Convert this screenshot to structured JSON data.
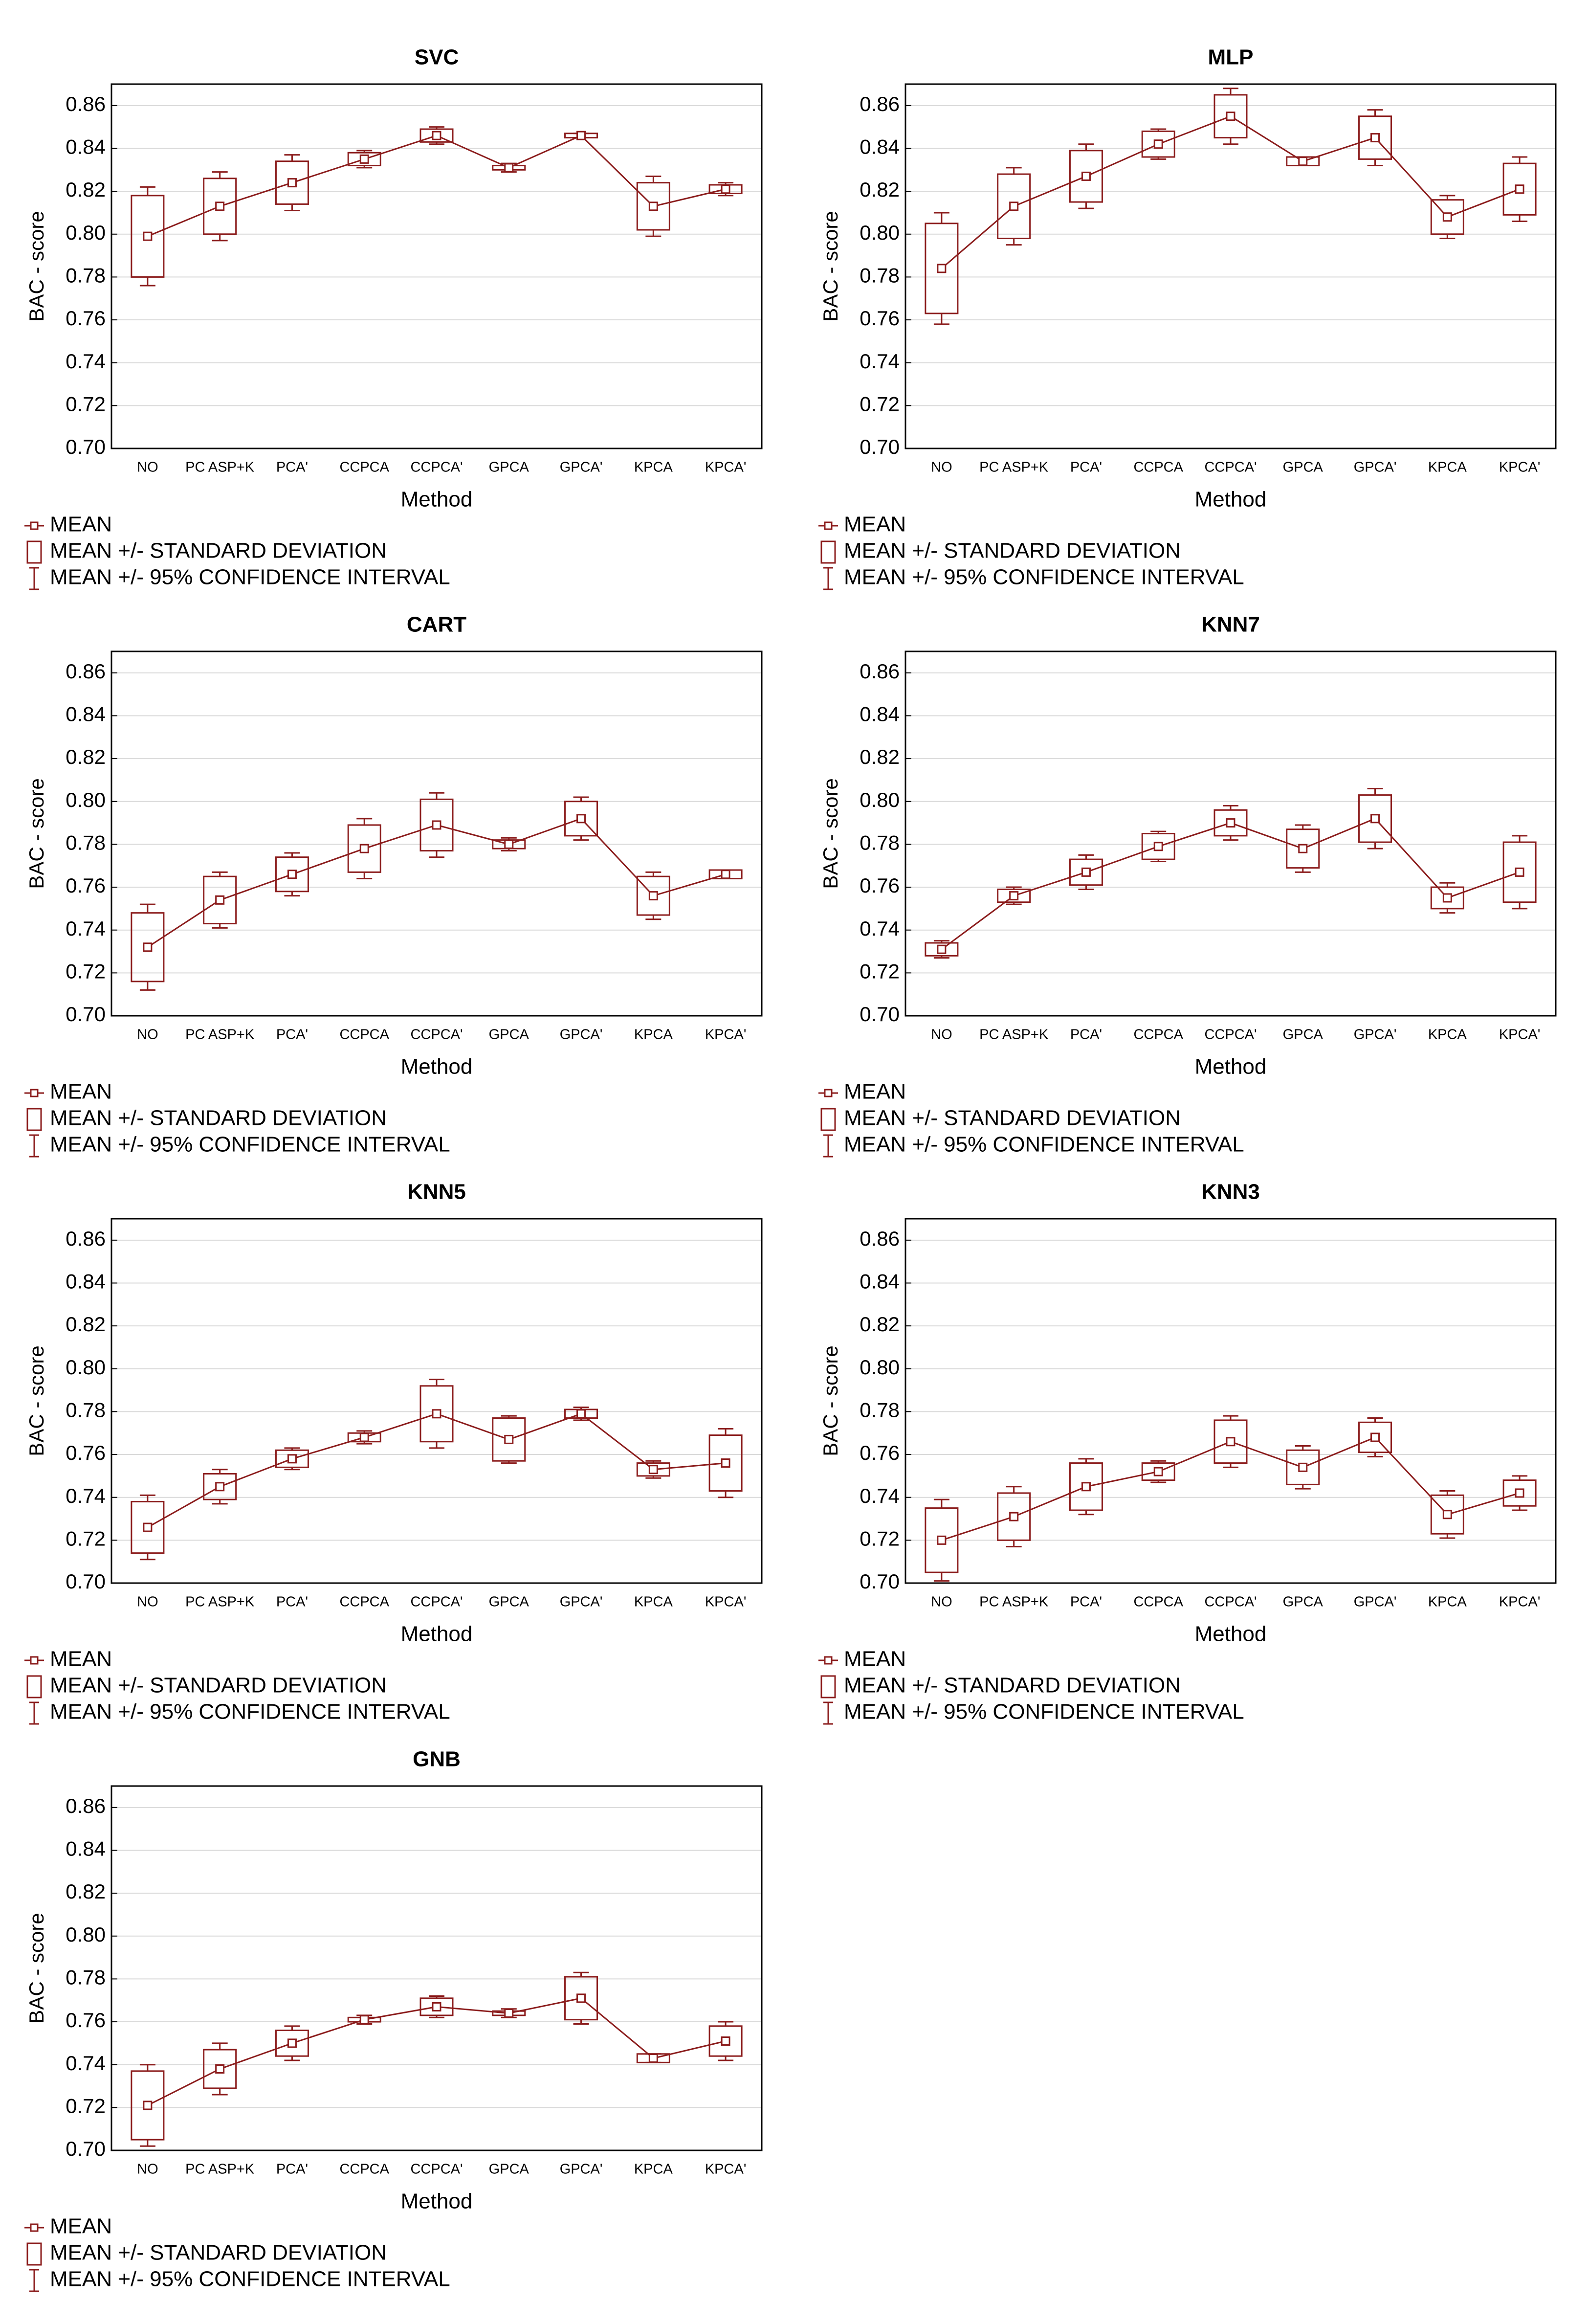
{
  "chart_data": [
    {
      "type": "box",
      "title": "SVC",
      "xlabel": "Method",
      "ylabel": "BAC - score",
      "color": "#8b1c1c",
      "grid": true,
      "legend": [
        "MEAN",
        "MEAN +/- STANDARD DEVIATION",
        "MEAN +/- 95% CONFIDENCE INTERVAL"
      ],
      "categories": [
        "NO",
        "PC ASP+K",
        "PCA'",
        "CCPCA",
        "CCPCA'",
        "GPCA",
        "GPCA'",
        "KPCA",
        "KPCA'"
      ],
      "mean": [
        0.799,
        0.813,
        0.824,
        0.835,
        0.846,
        0.831,
        0.846,
        0.813,
        0.821
      ],
      "sd": [
        0.019,
        0.013,
        0.01,
        0.003,
        0.003,
        0.001,
        0.001,
        0.011,
        0.002
      ],
      "ci": [
        0.023,
        0.016,
        0.013,
        0.004,
        0.004,
        0.002,
        0.001,
        0.014,
        0.003
      ],
      "ylim": [
        0.7,
        0.87
      ],
      "yticks": [
        {
          "value": 0.7,
          "label": "0.70"
        },
        {
          "value": 0.72,
          "label": "0.72"
        },
        {
          "value": 0.74,
          "label": "0.74"
        },
        {
          "value": 0.76,
          "label": "0.76"
        },
        {
          "value": 0.78,
          "label": "0.78"
        },
        {
          "value": 0.8,
          "label": "0.80"
        },
        {
          "value": 0.82,
          "label": "0.82"
        },
        {
          "value": 0.84,
          "label": "0.84"
        },
        {
          "value": 0.86,
          "label": "0.86"
        }
      ]
    },
    {
      "type": "box",
      "title": "MLP",
      "xlabel": "Method",
      "ylabel": "BAC - score",
      "color": "#8b1c1c",
      "grid": true,
      "legend": [
        "MEAN",
        "MEAN +/- STANDARD DEVIATION",
        "MEAN +/- 95% CONFIDENCE INTERVAL"
      ],
      "categories": [
        "NO",
        "PC ASP+K",
        "PCA'",
        "CCPCA",
        "CCPCA'",
        "GPCA",
        "GPCA'",
        "KPCA",
        "KPCA'"
      ],
      "mean": [
        0.784,
        0.813,
        0.827,
        0.842,
        0.855,
        0.834,
        0.845,
        0.808,
        0.821
      ],
      "sd": [
        0.021,
        0.015,
        0.012,
        0.006,
        0.01,
        0.002,
        0.01,
        0.008,
        0.012
      ],
      "ci": [
        0.026,
        0.018,
        0.015,
        0.007,
        0.013,
        0.002,
        0.013,
        0.01,
        0.015
      ],
      "ylim": [
        0.7,
        0.87
      ],
      "yticks": [
        {
          "value": 0.7,
          "label": "0.70"
        },
        {
          "value": 0.72,
          "label": "0.72"
        },
        {
          "value": 0.74,
          "label": "0.74"
        },
        {
          "value": 0.76,
          "label": "0.76"
        },
        {
          "value": 0.78,
          "label": "0.78"
        },
        {
          "value": 0.8,
          "label": "0.80"
        },
        {
          "value": 0.82,
          "label": "0.82"
        },
        {
          "value": 0.84,
          "label": "0.84"
        },
        {
          "value": 0.86,
          "label": "0.86"
        }
      ]
    },
    {
      "type": "box",
      "title": "CART",
      "xlabel": "Method",
      "ylabel": "BAC - score",
      "color": "#8b1c1c",
      "grid": true,
      "legend": [
        "MEAN",
        "MEAN +/- STANDARD DEVIATION",
        "MEAN +/- 95% CONFIDENCE INTERVAL"
      ],
      "categories": [
        "NO",
        "PC ASP+K",
        "PCA'",
        "CCPCA",
        "CCPCA'",
        "GPCA",
        "GPCA'",
        "KPCA",
        "KPCA'"
      ],
      "mean": [
        0.732,
        0.754,
        0.766,
        0.778,
        0.789,
        0.78,
        0.792,
        0.756,
        0.766
      ],
      "sd": [
        0.016,
        0.011,
        0.008,
        0.011,
        0.012,
        0.002,
        0.008,
        0.009,
        0.002
      ],
      "ci": [
        0.02,
        0.013,
        0.01,
        0.014,
        0.015,
        0.003,
        0.01,
        0.011,
        0.002
      ],
      "ylim": [
        0.7,
        0.87
      ],
      "yticks": [
        {
          "value": 0.7,
          "label": "0.70"
        },
        {
          "value": 0.72,
          "label": "0.72"
        },
        {
          "value": 0.74,
          "label": "0.74"
        },
        {
          "value": 0.76,
          "label": "0.76"
        },
        {
          "value": 0.78,
          "label": "0.78"
        },
        {
          "value": 0.8,
          "label": "0.80"
        },
        {
          "value": 0.82,
          "label": "0.82"
        },
        {
          "value": 0.84,
          "label": "0.84"
        },
        {
          "value": 0.86,
          "label": "0.86"
        }
      ]
    },
    {
      "type": "box",
      "title": "KNN7",
      "xlabel": "Method",
      "ylabel": "BAC - score",
      "color": "#8b1c1c",
      "grid": true,
      "legend": [
        "MEAN",
        "MEAN +/- STANDARD DEVIATION",
        "MEAN +/- 95% CONFIDENCE INTERVAL"
      ],
      "categories": [
        "NO",
        "PC ASP+K",
        "PCA'",
        "CCPCA",
        "CCPCA'",
        "GPCA",
        "GPCA'",
        "KPCA",
        "KPCA'"
      ],
      "mean": [
        0.731,
        0.756,
        0.767,
        0.779,
        0.79,
        0.778,
        0.792,
        0.755,
        0.767
      ],
      "sd": [
        0.003,
        0.003,
        0.006,
        0.006,
        0.006,
        0.009,
        0.011,
        0.005,
        0.014
      ],
      "ci": [
        0.004,
        0.004,
        0.008,
        0.007,
        0.008,
        0.011,
        0.014,
        0.007,
        0.017
      ],
      "ylim": [
        0.7,
        0.87
      ],
      "yticks": [
        {
          "value": 0.7,
          "label": "0.70"
        },
        {
          "value": 0.72,
          "label": "0.72"
        },
        {
          "value": 0.74,
          "label": "0.74"
        },
        {
          "value": 0.76,
          "label": "0.76"
        },
        {
          "value": 0.78,
          "label": "0.78"
        },
        {
          "value": 0.8,
          "label": "0.80"
        },
        {
          "value": 0.82,
          "label": "0.82"
        },
        {
          "value": 0.84,
          "label": "0.84"
        },
        {
          "value": 0.86,
          "label": "0.86"
        }
      ]
    },
    {
      "type": "box",
      "title": "KNN5",
      "xlabel": "Method",
      "ylabel": "BAC - score",
      "color": "#8b1c1c",
      "grid": true,
      "legend": [
        "MEAN",
        "MEAN +/- STANDARD DEVIATION",
        "MEAN +/- 95% CONFIDENCE INTERVAL"
      ],
      "categories": [
        "NO",
        "PC ASP+K",
        "PCA'",
        "CCPCA",
        "CCPCA'",
        "GPCA",
        "GPCA'",
        "KPCA",
        "KPCA'"
      ],
      "mean": [
        0.726,
        0.745,
        0.758,
        0.768,
        0.779,
        0.767,
        0.779,
        0.753,
        0.756
      ],
      "sd": [
        0.012,
        0.006,
        0.004,
        0.002,
        0.013,
        0.01,
        0.002,
        0.003,
        0.013
      ],
      "ci": [
        0.015,
        0.008,
        0.005,
        0.003,
        0.016,
        0.011,
        0.003,
        0.004,
        0.016
      ],
      "ylim": [
        0.7,
        0.87
      ],
      "yticks": [
        {
          "value": 0.7,
          "label": "0.70"
        },
        {
          "value": 0.72,
          "label": "0.72"
        },
        {
          "value": 0.74,
          "label": "0.74"
        },
        {
          "value": 0.76,
          "label": "0.76"
        },
        {
          "value": 0.78,
          "label": "0.78"
        },
        {
          "value": 0.8,
          "label": "0.80"
        },
        {
          "value": 0.82,
          "label": "0.82"
        },
        {
          "value": 0.84,
          "label": "0.84"
        },
        {
          "value": 0.86,
          "label": "0.86"
        }
      ]
    },
    {
      "type": "box",
      "title": "KNN3",
      "xlabel": "Method",
      "ylabel": "BAC - score",
      "color": "#8b1c1c",
      "grid": true,
      "legend": [
        "MEAN",
        "MEAN +/- STANDARD DEVIATION",
        "MEAN +/- 95% CONFIDENCE INTERVAL"
      ],
      "categories": [
        "NO",
        "PC ASP+K",
        "PCA'",
        "CCPCA",
        "CCPCA'",
        "GPCA",
        "GPCA'",
        "KPCA",
        "KPCA'"
      ],
      "mean": [
        0.72,
        0.731,
        0.745,
        0.752,
        0.766,
        0.754,
        0.768,
        0.732,
        0.742
      ],
      "sd": [
        0.015,
        0.011,
        0.011,
        0.004,
        0.01,
        0.008,
        0.007,
        0.009,
        0.006
      ],
      "ci": [
        0.019,
        0.014,
        0.013,
        0.005,
        0.012,
        0.01,
        0.009,
        0.011,
        0.008
      ],
      "ylim": [
        0.7,
        0.87
      ],
      "yticks": [
        {
          "value": 0.7,
          "label": "0.70"
        },
        {
          "value": 0.72,
          "label": "0.72"
        },
        {
          "value": 0.74,
          "label": "0.74"
        },
        {
          "value": 0.76,
          "label": "0.76"
        },
        {
          "value": 0.78,
          "label": "0.78"
        },
        {
          "value": 0.8,
          "label": "0.80"
        },
        {
          "value": 0.82,
          "label": "0.82"
        },
        {
          "value": 0.84,
          "label": "0.84"
        },
        {
          "value": 0.86,
          "label": "0.86"
        }
      ]
    },
    {
      "type": "box",
      "title": "GNB",
      "xlabel": "Method",
      "ylabel": "BAC - score",
      "color": "#8b1c1c",
      "grid": true,
      "legend": [
        "MEAN",
        "MEAN +/- STANDARD DEVIATION",
        "MEAN +/- 95% CONFIDENCE INTERVAL"
      ],
      "categories": [
        "NO",
        "PC ASP+K",
        "PCA'",
        "CCPCA",
        "CCPCA'",
        "GPCA",
        "GPCA'",
        "KPCA",
        "KPCA'"
      ],
      "mean": [
        0.721,
        0.738,
        0.75,
        0.761,
        0.767,
        0.764,
        0.771,
        0.743,
        0.751
      ],
      "sd": [
        0.016,
        0.009,
        0.006,
        0.001,
        0.004,
        0.001,
        0.01,
        0.002,
        0.007
      ],
      "ci": [
        0.019,
        0.012,
        0.008,
        0.002,
        0.005,
        0.002,
        0.012,
        0.002,
        0.009
      ],
      "ylim": [
        0.7,
        0.87
      ],
      "yticks": [
        {
          "value": 0.7,
          "label": "0.70"
        },
        {
          "value": 0.72,
          "label": "0.72"
        },
        {
          "value": 0.74,
          "label": "0.74"
        },
        {
          "value": 0.76,
          "label": "0.76"
        },
        {
          "value": 0.78,
          "label": "0.78"
        },
        {
          "value": 0.8,
          "label": "0.80"
        },
        {
          "value": 0.82,
          "label": "0.82"
        },
        {
          "value": 0.84,
          "label": "0.84"
        },
        {
          "value": 0.86,
          "label": "0.86"
        }
      ]
    }
  ]
}
